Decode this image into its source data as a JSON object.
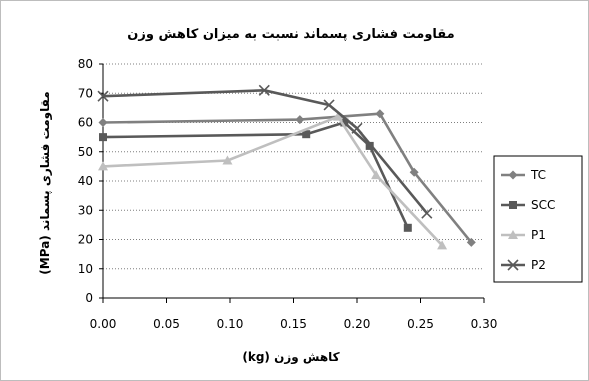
{
  "chart_data": {
    "type": "line",
    "title": "مقاومت فشاری پسماند نسبت به میزان کاهش وزن",
    "xlabel": "کاهش وزن (kg)",
    "ylabel": "مقاومت فشاری پسماند (MPa)",
    "xlim": [
      0,
      0.3
    ],
    "ylim": [
      0,
      80
    ],
    "xticks": [
      "0.00",
      "0.05",
      "0.10",
      "0.15",
      "0.20",
      "0.25",
      "0.30"
    ],
    "yticks": [
      "0",
      "10",
      "20",
      "30",
      "40",
      "50",
      "60",
      "70",
      "80"
    ],
    "grid": "horizontal dotted",
    "legend_position": "right",
    "series": [
      {
        "name": "TC",
        "color": "#808080",
        "marker": "diamond",
        "points": [
          [
            0,
            60
          ],
          [
            0.155,
            61
          ],
          [
            0.218,
            63
          ],
          [
            0.245,
            43
          ],
          [
            0.29,
            19
          ]
        ]
      },
      {
        "name": "SCC",
        "color": "#595959",
        "marker": "square",
        "points": [
          [
            0,
            55
          ],
          [
            0.16,
            56
          ],
          [
            0.19,
            60
          ],
          [
            0.21,
            52
          ],
          [
            0.24,
            24
          ]
        ]
      },
      {
        "name": "P1",
        "color": "#bfbfbf",
        "marker": "triangle",
        "points": [
          [
            0,
            45
          ],
          [
            0.098,
            47
          ],
          [
            0.185,
            62
          ],
          [
            0.215,
            42
          ],
          [
            0.267,
            18
          ]
        ]
      },
      {
        "name": "P2",
        "color": "#595959",
        "marker": "x",
        "points": [
          [
            0,
            69
          ],
          [
            0.127,
            71
          ],
          [
            0.178,
            66
          ],
          [
            0.2,
            58
          ],
          [
            0.255,
            29
          ]
        ]
      }
    ]
  }
}
